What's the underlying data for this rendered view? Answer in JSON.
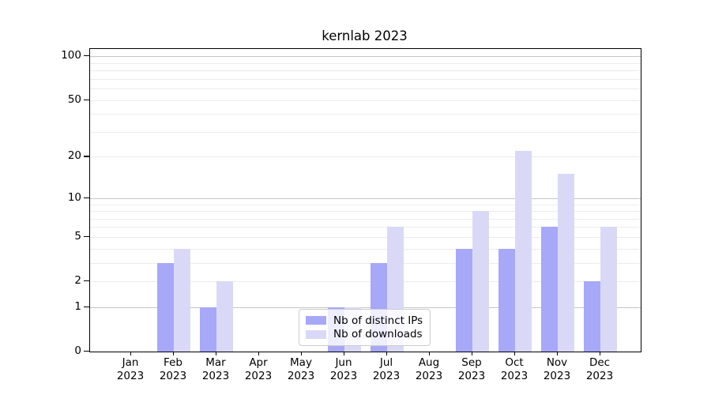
{
  "chart_data": {
    "type": "bar",
    "title": "kernlab 2023",
    "categories": [
      "Jan 2023",
      "Feb 2023",
      "Mar 2023",
      "Apr 2023",
      "May 2023",
      "Jun 2023",
      "Jul 2023",
      "Aug 2023",
      "Sep 2023",
      "Oct 2023",
      "Nov 2023",
      "Dec 2023"
    ],
    "series": [
      {
        "name": "Nb of distinct IPs",
        "color": "#a8a8f8",
        "values": [
          0,
          3,
          1,
          0,
          0,
          1,
          3,
          0,
          4,
          4,
          6,
          2
        ]
      },
      {
        "name": "Nb of downloads",
        "color": "#d9d9f7",
        "values": [
          0,
          4,
          2,
          0,
          0,
          1,
          6,
          0,
          8,
          22,
          15,
          6
        ]
      }
    ],
    "y_scale": "log1p",
    "y_ticks": [
      0,
      1,
      2,
      5,
      10,
      20,
      50,
      100
    ],
    "y_major_gridlines": [
      1,
      10,
      100
    ],
    "y_minor_gridlines": [
      2,
      3,
      4,
      5,
      6,
      7,
      8,
      9,
      20,
      30,
      40,
      50,
      60,
      70,
      80,
      90
    ],
    "ylim": [
      0,
      110
    ],
    "grid": "horizontal",
    "legend_position": "inside-bottom-center",
    "colors": {
      "major_grid": "#c5c5c5",
      "minor_grid": "#ececec",
      "axis": "#000000",
      "background": "#ffffff",
      "text": "#000000"
    }
  }
}
